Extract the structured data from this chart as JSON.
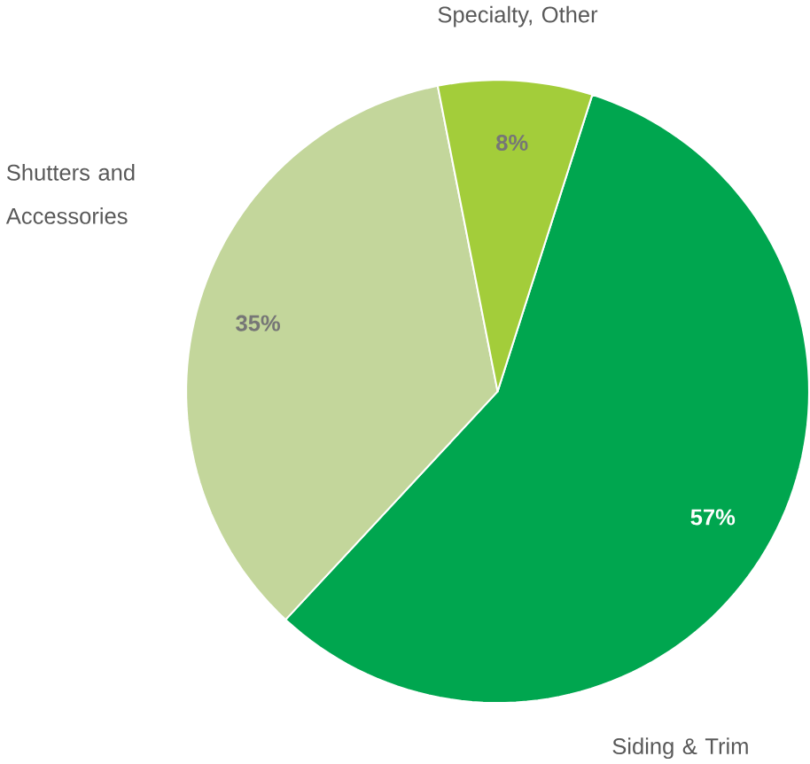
{
  "chart_data": {
    "type": "pie",
    "categories": [
      "Siding & Trim",
      "Shutters and Accessories",
      "Specialty, Other"
    ],
    "values": [
      57,
      35,
      8
    ],
    "colors": [
      "#00a64f",
      "#c3d69b",
      "#a3cd3a"
    ],
    "value_labels": [
      "57%",
      "35%",
      "8%"
    ]
  }
}
